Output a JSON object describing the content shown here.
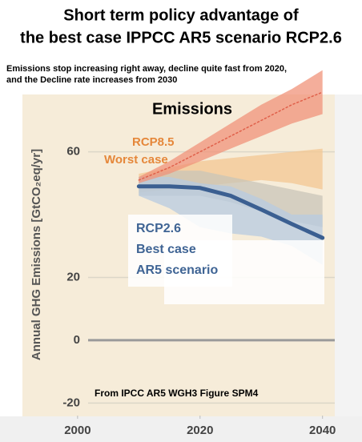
{
  "chart_data": {
    "type": "line",
    "title": [
      "Short term policy advantage of",
      "the best case IPPCC AR5 scenario RCP2.6"
    ],
    "subtitle": [
      "Emissions stop increasing right away, decline quite fast  from 2020,",
      "and the Decline rate increases from 2030"
    ],
    "panel_label": "Emissions",
    "ylabel": "Annual GHG Emissions [GtCO₂eq/yr]",
    "source": "From IPCC AR5  WGH3 Figure SPM4",
    "annotations": [
      {
        "text": "RCP8.5",
        "color": "#e5873a"
      },
      {
        "text": "Worst case",
        "color": "#e5873a"
      },
      {
        "text": "RCP2.6",
        "color": "#3f6494"
      },
      {
        "text": "Best case",
        "color": "#3f6494"
      },
      {
        "text": "AR5 scenario",
        "color": "#3f6494"
      }
    ],
    "x": [
      2010,
      2015,
      2020,
      2025,
      2030,
      2035,
      2040
    ],
    "bands": [
      {
        "color": "#f3c791",
        "lower": [
          47,
          48,
          49,
          50,
          51,
          50,
          48
        ],
        "upper": [
          53,
          55,
          57,
          58,
          59,
          60,
          61
        ]
      },
      {
        "color": "#c9c6b8",
        "lower": [
          46,
          46,
          46,
          44,
          41,
          38,
          36
        ],
        "upper": [
          52,
          54,
          54,
          52,
          50,
          48,
          46
        ]
      },
      {
        "color": "#b7cbe0",
        "lower": [
          46,
          42,
          36,
          34,
          33,
          30,
          24
        ],
        "upper": [
          52,
          52,
          50,
          49,
          45,
          40,
          40
        ]
      },
      {
        "color": "#f0937a",
        "lower": [
          50,
          53,
          57,
          61,
          65,
          69,
          72
        ],
        "upper": [
          52,
          57,
          63,
          69,
          75,
          80,
          86
        ]
      }
    ],
    "series": [
      {
        "color": "#e0604a",
        "dashed": true,
        "width": 1.5,
        "values": [
          51,
          55,
          60,
          65,
          70,
          75,
          79
        ]
      },
      {
        "color": "#3b5f91",
        "dashed": false,
        "width": 5,
        "values": [
          49,
          49,
          48.5,
          46,
          41.6,
          37,
          32.6
        ]
      }
    ],
    "xlim": [
      1994,
      2042
    ],
    "ylim": [
      -24,
      78
    ],
    "xticks": [
      2000,
      2020,
      2040
    ],
    "yticks": [
      -20,
      0,
      20,
      60
    ],
    "grid": true
  }
}
